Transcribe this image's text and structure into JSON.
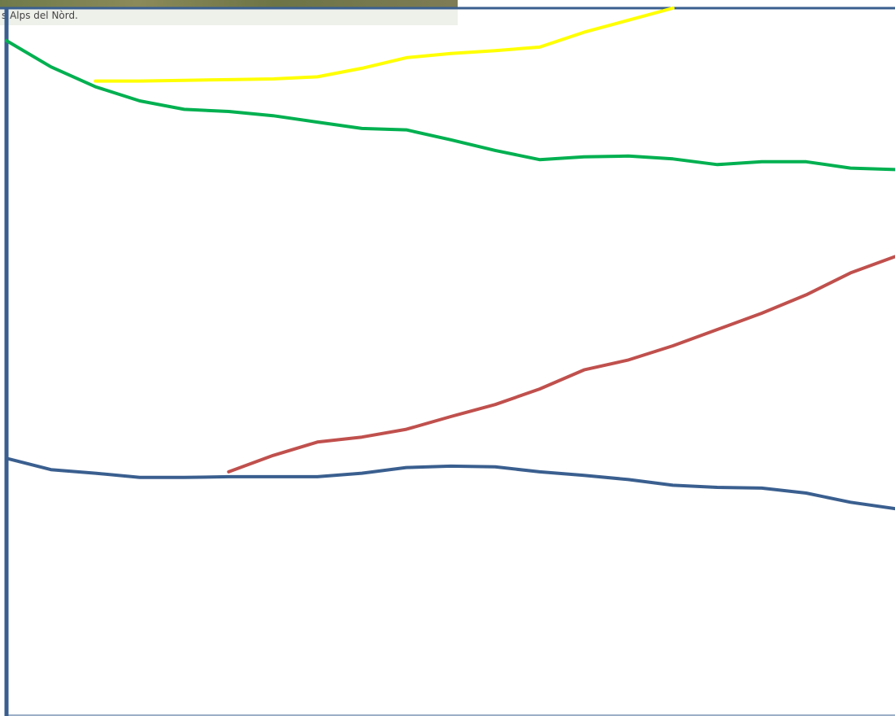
{
  "caption": "s Alps del Nòrd.",
  "chart_data": {
    "type": "line",
    "x": [
      0,
      5,
      10,
      15,
      20,
      25,
      30,
      35,
      40,
      45,
      50,
      55,
      60,
      65,
      70,
      75,
      80,
      85,
      90,
      95,
      100
    ],
    "xlim": [
      0,
      100
    ],
    "ylim": [
      0,
      100
    ],
    "series": [
      {
        "color": "#00b050",
        "values": [
          95.4,
          91.7,
          88.9,
          86.9,
          85.7,
          85.4,
          84.8,
          83.9,
          83.0,
          82.8,
          81.4,
          79.9,
          78.6,
          79.0,
          79.1,
          78.7,
          77.9,
          78.3,
          78.3,
          77.4,
          77.2
        ]
      },
      {
        "color": "#ffff00",
        "values": [
          null,
          null,
          89.7,
          89.7,
          89.8,
          89.9,
          90.0,
          90.3,
          91.5,
          93.0,
          93.6,
          94.0,
          94.5,
          96.6,
          98.3,
          100,
          null,
          null,
          null,
          null,
          null
        ]
      },
      {
        "color": "#c0504d",
        "values": [
          null,
          null,
          null,
          null,
          null,
          34.5,
          36.8,
          38.7,
          39.4,
          40.5,
          42.3,
          44.0,
          46.2,
          48.9,
          50.3,
          52.3,
          54.6,
          56.9,
          59.5,
          62.6,
          64.9
        ]
      },
      {
        "color": "#3a5f8f",
        "values": [
          36.4,
          34.8,
          34.3,
          33.7,
          33.7,
          33.8,
          33.8,
          33.8,
          34.3,
          35.1,
          35.3,
          35.2,
          34.5,
          34.0,
          33.4,
          32.6,
          32.3,
          32.2,
          31.5,
          30.2,
          29.3
        ]
      }
    ]
  }
}
